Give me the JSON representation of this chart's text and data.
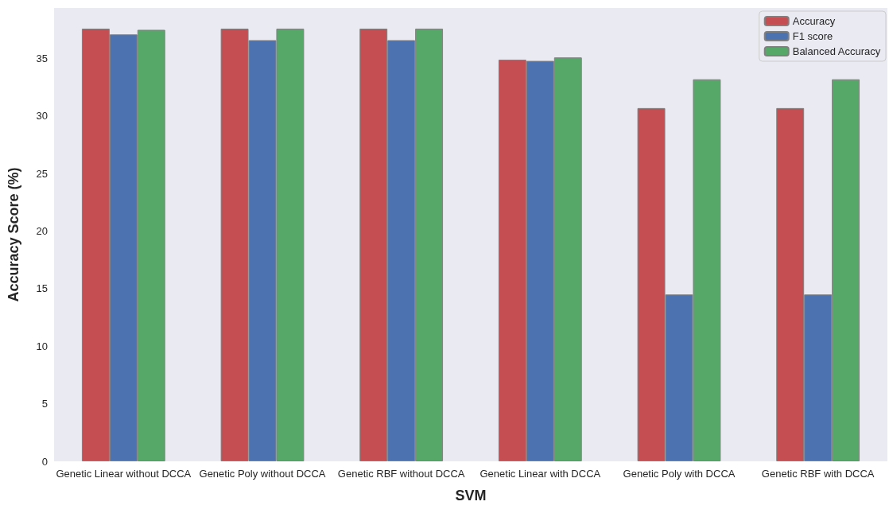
{
  "chart_data": {
    "type": "bar",
    "xlabel": "SVM",
    "ylabel": "Accuracy Score (%)",
    "categories": [
      "Genetic Linear without DCCA",
      "Genetic Poly without DCCA",
      "Genetic RBF without DCCA",
      "Genetic Linear with DCCA",
      "Genetic Poly with DCCA",
      "Genetic RBF with DCCA"
    ],
    "series": [
      {
        "name": "Accuracy",
        "color": "#c44e52",
        "values": [
          37.6,
          37.6,
          37.6,
          34.9,
          30.7,
          30.7
        ]
      },
      {
        "name": "F1 score",
        "color": "#4c72b0",
        "values": [
          37.1,
          36.6,
          36.6,
          34.8,
          14.5,
          14.5
        ]
      },
      {
        "name": "Balanced Accuracy",
        "color": "#55a868",
        "values": [
          37.5,
          37.6,
          37.6,
          35.1,
          33.2,
          33.2
        ]
      }
    ],
    "ylim": [
      0,
      39.4
    ],
    "yticks": [
      0,
      5,
      10,
      15,
      20,
      25,
      30,
      35
    ],
    "grid": false,
    "legend": "top right"
  }
}
